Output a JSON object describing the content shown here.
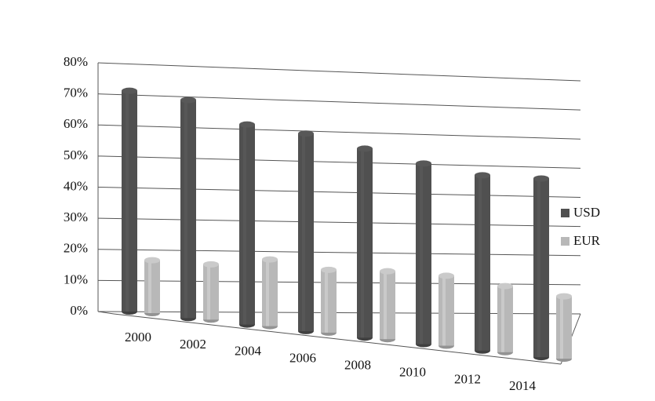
{
  "chart_data": {
    "type": "bar",
    "categories": [
      "2000",
      "2002",
      "2004",
      "2006",
      "2008",
      "2010",
      "2012",
      "2014"
    ],
    "series": [
      {
        "name": "USD",
        "color": "#505050",
        "values": [
          71,
          71,
          66,
          66,
          64,
          62,
          61,
          63
        ]
      },
      {
        "name": "EUR",
        "color": "#b8b8b8",
        "values": [
          17,
          18,
          22,
          21,
          23,
          24,
          23,
          22
        ]
      }
    ],
    "ylim": [
      0,
      80
    ],
    "yticks": [
      {
        "value": 0,
        "label": "0%"
      },
      {
        "value": 10,
        "label": "10%"
      },
      {
        "value": 20,
        "label": "20%"
      },
      {
        "value": 30,
        "label": "30%"
      },
      {
        "value": 40,
        "label": "40%"
      },
      {
        "value": 50,
        "label": "50%"
      },
      {
        "value": 60,
        "label": "60%"
      },
      {
        "value": 70,
        "label": "70%"
      },
      {
        "value": 80,
        "label": "80%"
      }
    ],
    "grid": true,
    "legend": "right"
  }
}
